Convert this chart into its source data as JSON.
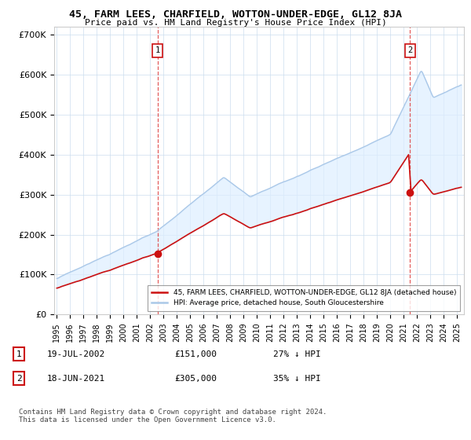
{
  "title": "45, FARM LEES, CHARFIELD, WOTTON-UNDER-EDGE, GL12 8JA",
  "subtitle": "Price paid vs. HM Land Registry's House Price Index (HPI)",
  "ylabel_ticks": [
    "£0",
    "£100K",
    "£200K",
    "£300K",
    "£400K",
    "£500K",
    "£600K",
    "£700K"
  ],
  "ytick_values": [
    0,
    100000,
    200000,
    300000,
    400000,
    500000,
    600000,
    700000
  ],
  "ylim": [
    0,
    720000
  ],
  "xlim_start": 1994.8,
  "xlim_end": 2025.5,
  "xtick_years": [
    1995,
    1996,
    1997,
    1998,
    1999,
    2000,
    2001,
    2002,
    2003,
    2004,
    2005,
    2006,
    2007,
    2008,
    2009,
    2010,
    2011,
    2012,
    2013,
    2014,
    2015,
    2016,
    2017,
    2018,
    2019,
    2020,
    2021,
    2022,
    2023,
    2024,
    2025
  ],
  "hpi_color": "#aac8e8",
  "hpi_fill_color": "#ddeeff",
  "price_color": "#cc1111",
  "dashed_line_color": "#dd3333",
  "marker1_x": 2002.54,
  "marker1_y": 151000,
  "marker2_x": 2021.46,
  "marker2_y": 305000,
  "legend_label1": "45, FARM LEES, CHARFIELD, WOTTON-UNDER-EDGE, GL12 8JA (detached house)",
  "legend_label2": "HPI: Average price, detached house, South Gloucestershire",
  "annotation1_date": "19-JUL-2002",
  "annotation1_price": "£151,000",
  "annotation1_hpi": "27% ↓ HPI",
  "annotation2_date": "18-JUN-2021",
  "annotation2_price": "£305,000",
  "annotation2_hpi": "35% ↓ HPI",
  "footer": "Contains HM Land Registry data © Crown copyright and database right 2024.\nThis data is licensed under the Open Government Licence v3.0.",
  "background_color": "#ffffff",
  "grid_color": "#ccddee"
}
